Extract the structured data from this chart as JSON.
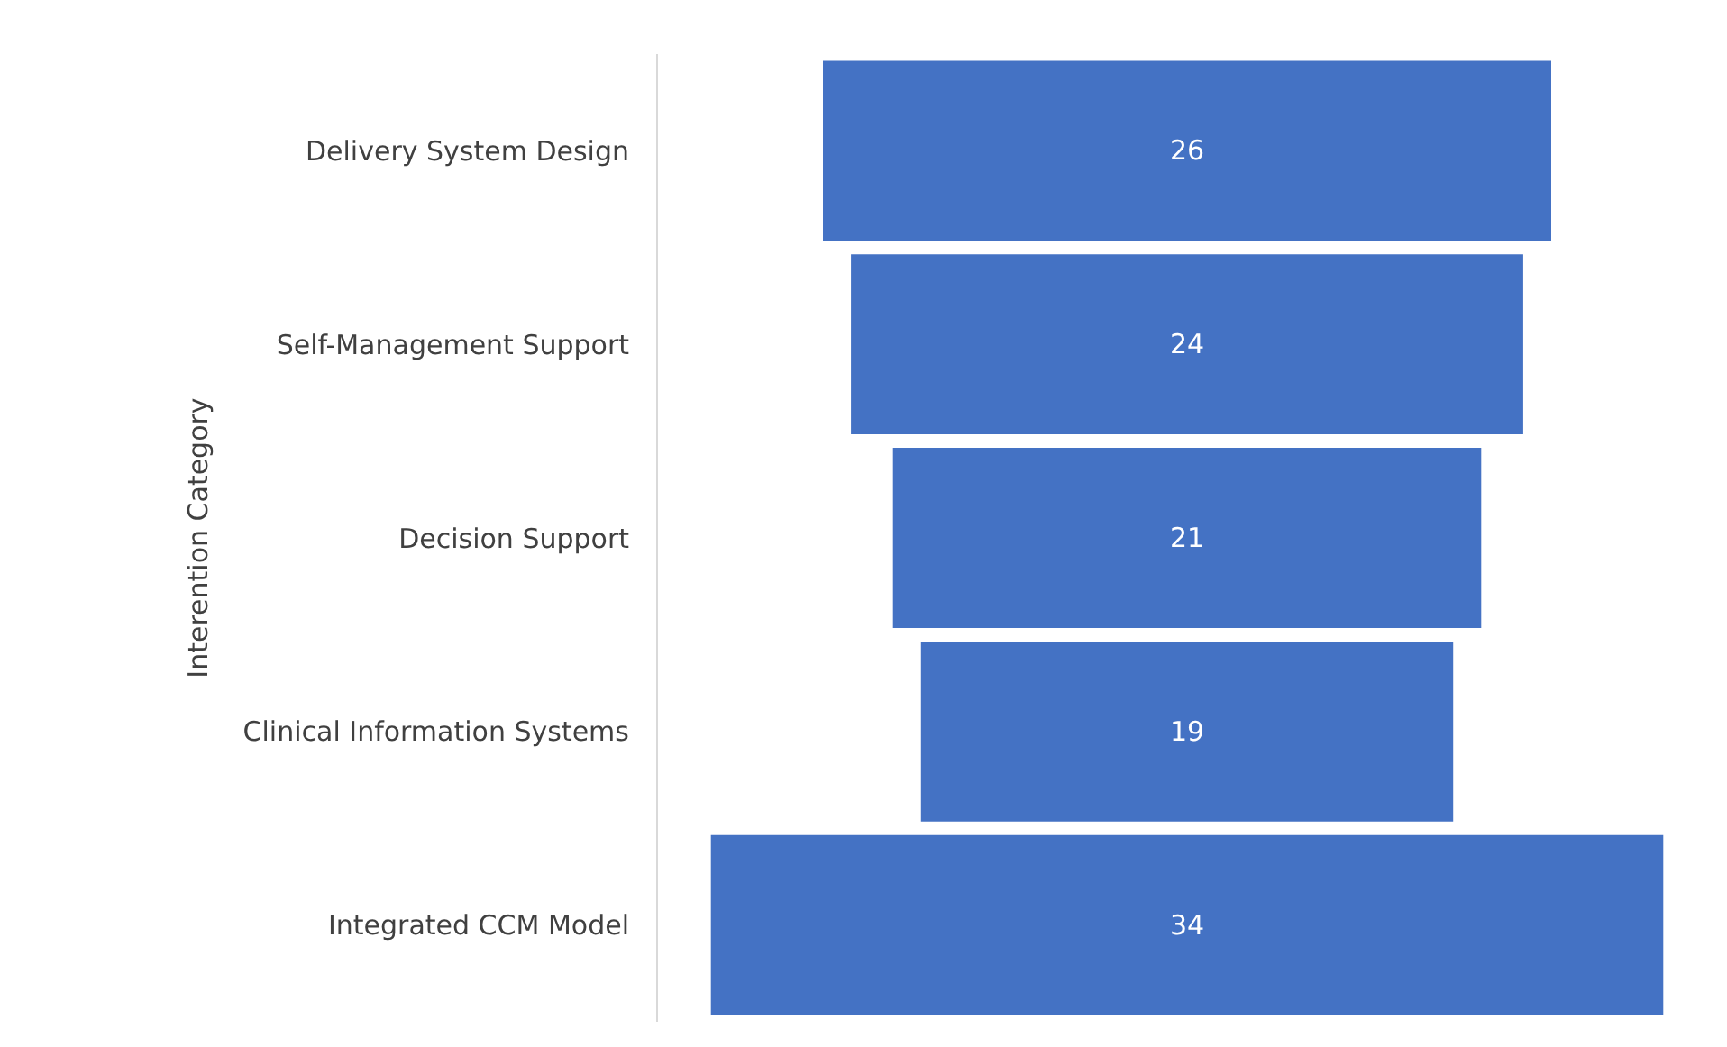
{
  "chart_data": {
    "type": "other",
    "ylabel": "Interention Category",
    "categories": [
      "Delivery System Design",
      "Self-Management Support",
      "Decision Support",
      "Clinical Information Systems",
      "Integrated CCM Model"
    ],
    "values": [
      26,
      24,
      21,
      19,
      34
    ],
    "color": "#4472c4",
    "data_labels": true
  }
}
